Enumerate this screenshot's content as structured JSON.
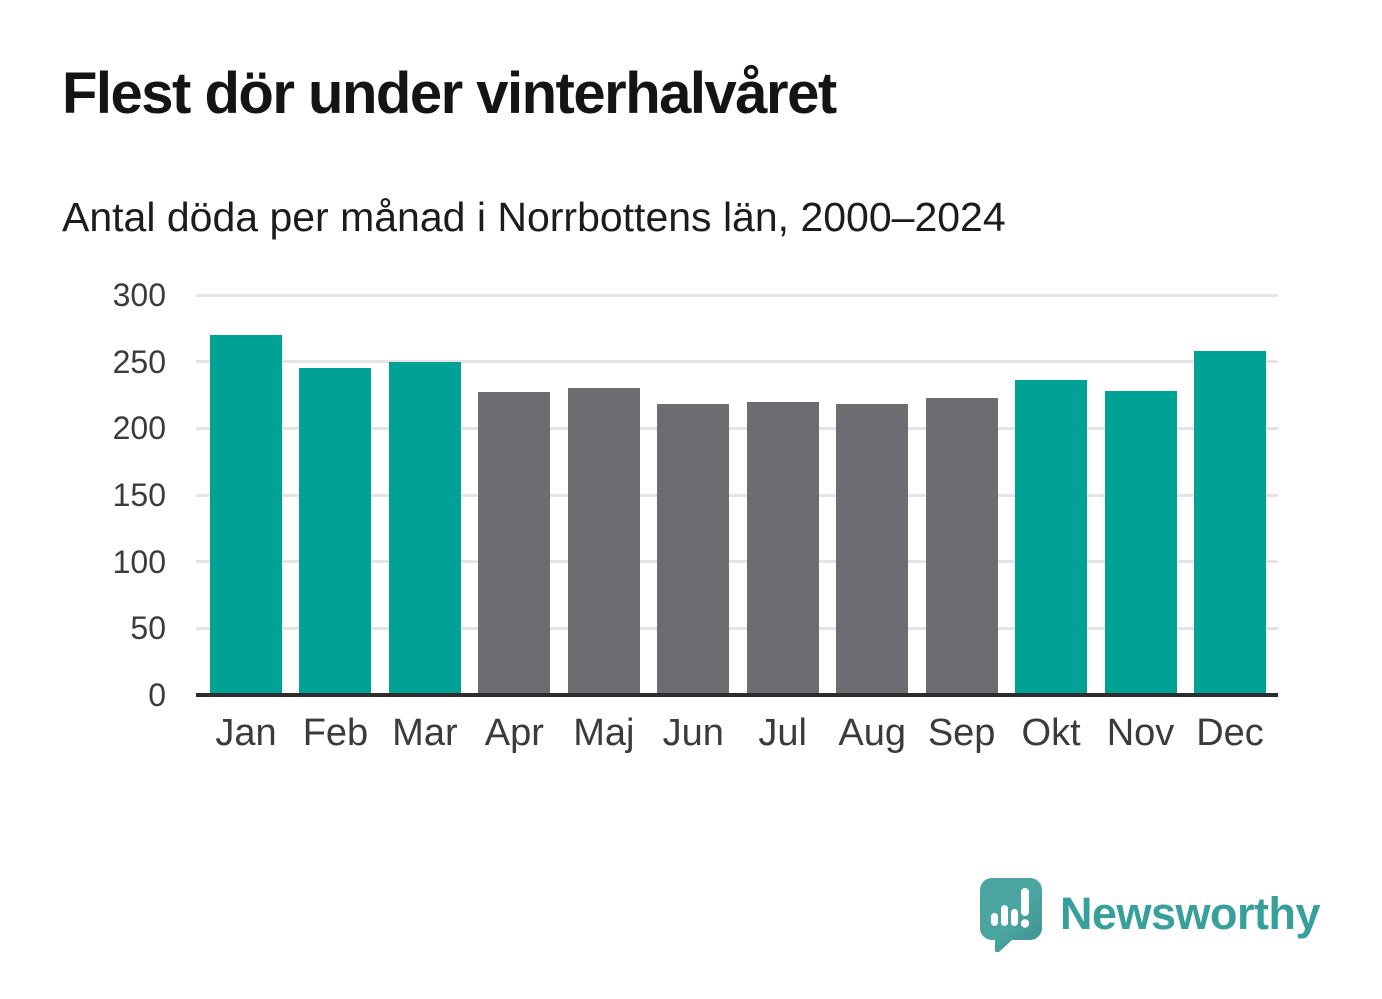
{
  "chart_data": {
    "type": "bar",
    "title": "Flest dör under vinterhalvåret",
    "subtitle": "Antal döda per månad i Norrbottens län, 2000–2024",
    "categories": [
      "Jan",
      "Feb",
      "Mar",
      "Apr",
      "Maj",
      "Jun",
      "Jul",
      "Aug",
      "Sep",
      "Okt",
      "Nov",
      "Dec"
    ],
    "values": [
      270,
      245,
      250,
      227,
      230,
      218,
      220,
      218,
      223,
      236,
      228,
      258
    ],
    "bar_colors": [
      "teal",
      "teal",
      "teal",
      "gray",
      "gray",
      "gray",
      "gray",
      "gray",
      "gray",
      "teal",
      "teal",
      "teal"
    ],
    "colors": {
      "teal": "#00a296",
      "gray": "#6d6d71"
    },
    "ylim": [
      0,
      300
    ],
    "yticks": [
      0,
      50,
      100,
      150,
      200,
      250,
      300
    ],
    "grid": "horizontal",
    "gridline_color": "#e4e4e4",
    "axis_line_color": "#2d2d2d",
    "legend": "none",
    "xlabel": "",
    "ylabel": ""
  },
  "branding": {
    "label": "Newsworthy",
    "logo_icon": "newsworthy-speech-bubble-bar-chart-icon",
    "text_color": "#38a09a",
    "bubble_color": "#4aa4a0",
    "bubble_shade_color": "#3f908d"
  }
}
